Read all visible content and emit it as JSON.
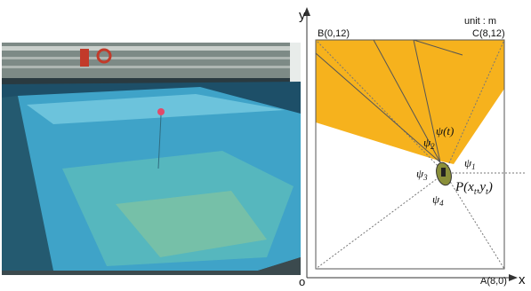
{
  "diagram": {
    "axis_y": "y",
    "axis_x": "x",
    "origin": "o",
    "unit": "unit : m",
    "corner_b": "B(0,12)",
    "corner_c": "C(8,12)",
    "corner_a": "A(8,0)",
    "psi_t": "ψ(t)",
    "psi_1": {
      "symbol": "ψ",
      "sub": "1"
    },
    "psi_2": {
      "symbol": "ψ",
      "sub": "2"
    },
    "psi_3": {
      "symbol": "ψ",
      "sub": "3"
    },
    "psi_4": {
      "symbol": "ψ",
      "sub": "4"
    },
    "point_p": [
      "P(x",
      "t",
      ",y",
      "t",
      ")"
    ]
  }
}
